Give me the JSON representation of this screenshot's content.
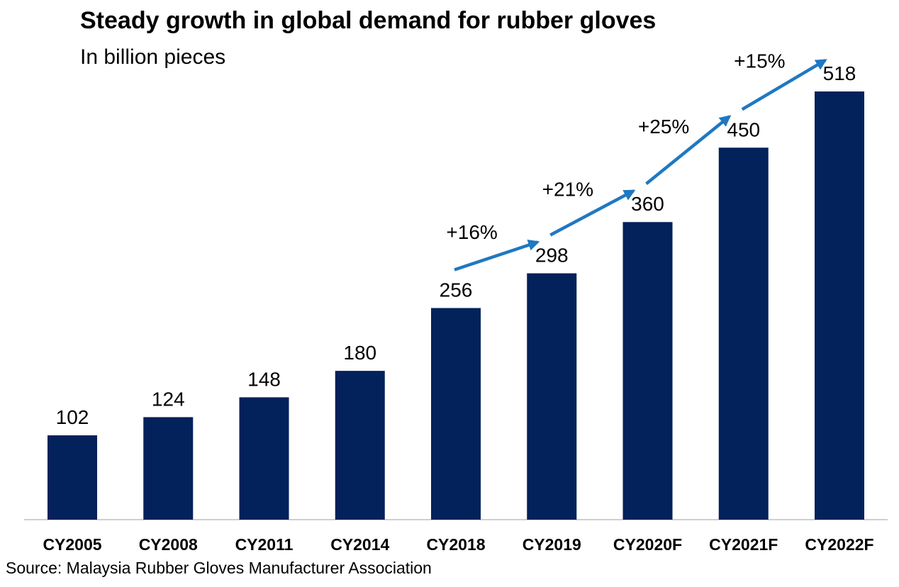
{
  "title": "Steady growth in global demand for rubber gloves",
  "subtitle": "In billion pieces",
  "source": "Source: Malaysia Rubber Gloves Manufacturer Association",
  "colors": {
    "bar": "#03215b",
    "arrow": "#1f78c1",
    "axis": "#bfbfbf",
    "text": "#000000"
  },
  "chart_data": {
    "type": "bar",
    "title": "Steady growth in global demand for rubber gloves",
    "subtitle": "In billion pieces",
    "categories": [
      "CY2005",
      "CY2008",
      "CY2011",
      "CY2014",
      "CY2018",
      "CY2019",
      "CY2020F",
      "CY2021F",
      "CY2022F"
    ],
    "values": [
      102,
      124,
      148,
      180,
      256,
      298,
      360,
      450,
      518
    ],
    "ylim": [
      0,
      518
    ],
    "grid": false,
    "data_labels": true,
    "annotations": [
      {
        "text": "+16%",
        "from": "CY2018",
        "to": "CY2019"
      },
      {
        "text": "+21%",
        "from": "CY2019",
        "to": "CY2020F"
      },
      {
        "text": "+25%",
        "from": "CY2020F",
        "to": "CY2021F"
      },
      {
        "text": "+15%",
        "from": "CY2021F",
        "to": "CY2022F"
      }
    ]
  }
}
